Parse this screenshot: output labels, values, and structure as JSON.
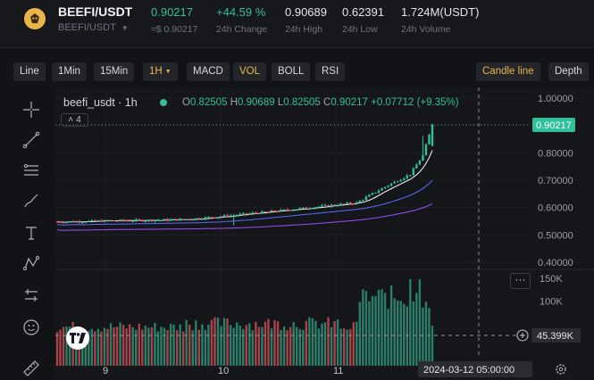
{
  "header": {
    "pair": "BEEFI/USDT",
    "pair_sub": "BEEFI/USDT",
    "last_price": "0.90217",
    "last_price_usd": "≈$ 0.90217",
    "change": "+44.59 %",
    "change_label": "24h Change",
    "high": "0.90689",
    "high_label": "24h High",
    "low": "0.62391",
    "low_label": "24h Low",
    "volume": "1.724M(USDT)",
    "volume_label": "24h Volume"
  },
  "toolbar": {
    "line": "Line",
    "min1": "1Min",
    "min15": "15Min",
    "h1": "1H",
    "macd": "MACD",
    "vol": "VOL",
    "boll": "BOLL",
    "rsi": "RSI",
    "candle_line": "Candle line",
    "depth": "Depth"
  },
  "tools": [
    "crosshair-icon",
    "trend-line-icon",
    "fib-lines-icon",
    "brush-icon",
    "text-icon",
    "pattern-icon",
    "measure-icon",
    "emoji-icon",
    "ruler-icon"
  ],
  "chart": {
    "symbol_label": "beefi_usdt · 1h",
    "ohlc": {
      "o_label": "O",
      "o": "0.82505",
      "h_label": "H",
      "h": "0.90689",
      "l_label": "L",
      "l": "0.82505",
      "c_label": "C",
      "c": "0.90217",
      "change": "+0.07712 (+9.35%)"
    },
    "collapse_count": "4",
    "more": "···",
    "price_ticks": [
      "1.00000",
      "0.90000",
      "0.80000",
      "0.70000",
      "0.60000",
      "0.50000",
      "0.40000"
    ],
    "current_price_tag": "0.90217",
    "volume_ticks": [
      "150K",
      "100K"
    ],
    "volume_tag": "45.399K",
    "date_ticks": [
      "9",
      "10",
      "11"
    ],
    "crosshair_time": "2024-03-12   05:00:00",
    "colors": {
      "up": "#2fbf9a",
      "down": "#e0525a",
      "accent": "#e9b54a",
      "ma1": "#ffffff",
      "ma2": "#5b6bff",
      "ma3": "#9b4dff"
    }
  },
  "chart_data": {
    "type": "candlestick",
    "price_axis_range": [
      0.38,
      1.02
    ],
    "volume_axis_range": [
      0,
      160000
    ],
    "x_start": "2024-03-08 12:00",
    "candle_count": 120,
    "closes_keypoints": [
      [
        0,
        0.548
      ],
      [
        40,
        0.556
      ],
      [
        55,
        0.571
      ],
      [
        70,
        0.588
      ],
      [
        80,
        0.6
      ],
      [
        95,
        0.618
      ],
      [
        105,
        0.682
      ],
      [
        112,
        0.722
      ],
      [
        116,
        0.79
      ],
      [
        119,
        0.902
      ]
    ],
    "last_close": 0.90217,
    "volume_tag_value": 45399
  }
}
